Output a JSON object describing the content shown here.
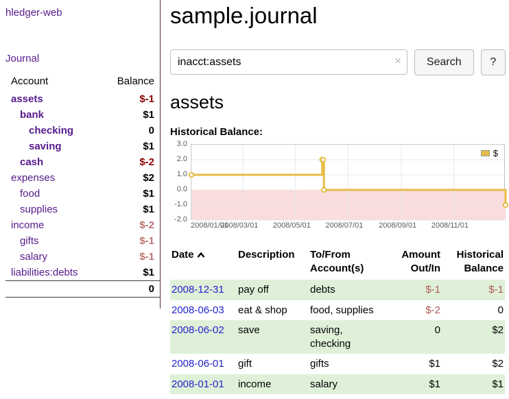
{
  "app": {
    "title": "hledger-web"
  },
  "sidebar": {
    "journal_link": "Journal",
    "headers": {
      "account": "Account",
      "balance": "Balance"
    },
    "accounts": [
      {
        "name": "assets",
        "balance": "$-1"
      },
      {
        "name": "bank",
        "balance": "$1"
      },
      {
        "name": "checking",
        "balance": "0"
      },
      {
        "name": "saving",
        "balance": "$1"
      },
      {
        "name": "cash",
        "balance": "$-2"
      },
      {
        "name": "expenses",
        "balance": "$2"
      },
      {
        "name": "food",
        "balance": "$1"
      },
      {
        "name": "supplies",
        "balance": "$1"
      },
      {
        "name": "income",
        "balance": "$-2"
      },
      {
        "name": "gifts",
        "balance": "$-1"
      },
      {
        "name": "salary",
        "balance": "$-1"
      },
      {
        "name": "liabilities:debts",
        "balance": "$1"
      }
    ],
    "total": "0"
  },
  "main": {
    "title": "sample.journal",
    "search": {
      "value": "inacct:assets",
      "clear_icon": "×",
      "button_label": "Search",
      "help_label": "?"
    },
    "section_title": "assets",
    "chart_label": "Historical Balance:"
  },
  "chart_data": {
    "type": "line",
    "step": true,
    "title": "Historical Balance",
    "legend_position": "top-right",
    "grid": true,
    "x_range": [
      "2008/01/01",
      "2008/12/31"
    ],
    "ylim": [
      -2,
      3
    ],
    "y_ticks": [
      "3.0",
      "2.0",
      "1.0",
      "0.0",
      "-1.0",
      "-2.0"
    ],
    "x_ticks": [
      "2008/01/01",
      "2008/03/01",
      "2008/05/01",
      "2008/07/01",
      "2008/09/01",
      "2008/11/01"
    ],
    "series": [
      {
        "name": "$",
        "color": "#e7bd47",
        "points": [
          {
            "x": "2008/01/01",
            "y": 1
          },
          {
            "x": "2008/06/01",
            "y": 2
          },
          {
            "x": "2008/06/02",
            "y": 2
          },
          {
            "x": "2008/06/03",
            "y": 0
          },
          {
            "x": "2008/12/31",
            "y": -1
          }
        ]
      }
    ],
    "grid_color": "#e8e8e8",
    "negative_region_color": "#fbdcdc"
  },
  "register": {
    "sort_icon": "chevron-up",
    "headers": [
      {
        "line1": "Date",
        "line2": ""
      },
      {
        "line1": "Description",
        "line2": ""
      },
      {
        "line1": "To/From",
        "line2": "Account(s)"
      },
      {
        "line1": "Amount",
        "line2": "Out/In"
      },
      {
        "line1": "Historical",
        "line2": "Balance"
      }
    ],
    "rows": [
      {
        "date": "2008-12-31",
        "description": "pay off",
        "accounts": "debts",
        "amount": "$-1",
        "balance": "$-1"
      },
      {
        "date": "2008-06-03",
        "description": "eat & shop",
        "accounts": "food, supplies",
        "amount": "$-2",
        "balance": "0"
      },
      {
        "date": "2008-06-02",
        "description": "save",
        "accounts": "saving,\nchecking",
        "amount": "0",
        "balance": "$2"
      },
      {
        "date": "2008-06-01",
        "description": "gift",
        "accounts": "gifts",
        "amount": "$1",
        "balance": "$2"
      },
      {
        "date": "2008-01-01",
        "description": "income",
        "accounts": "salary",
        "amount": "$1",
        "balance": "$1"
      }
    ]
  }
}
